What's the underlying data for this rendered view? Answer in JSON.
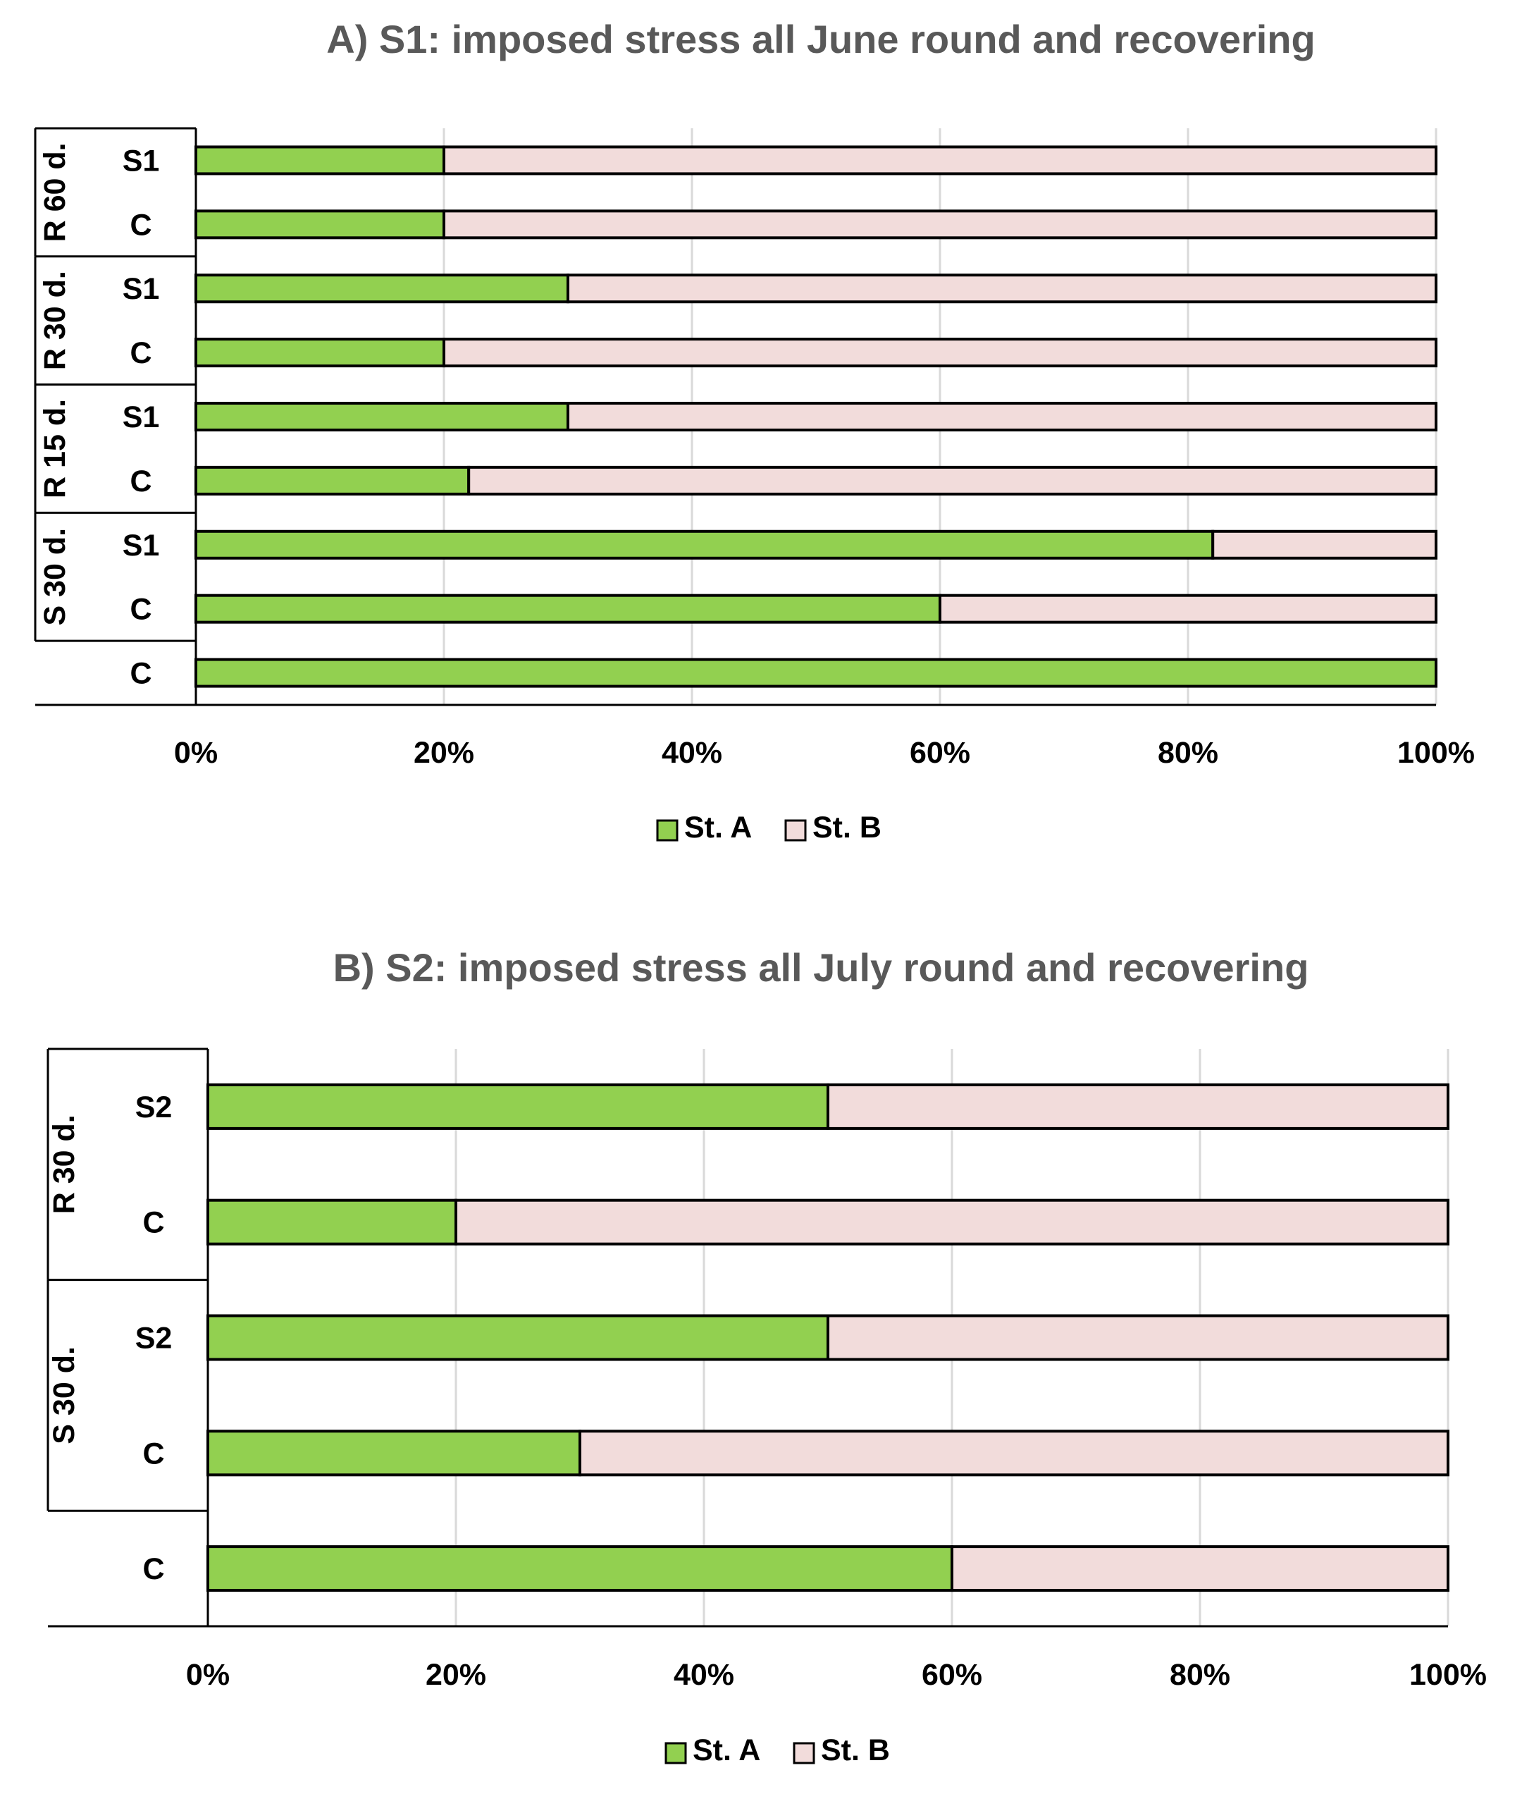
{
  "colors": {
    "st_a": "#92d050",
    "st_b": "#f2dcdb",
    "grid": "#d9d9d9",
    "axis": "#000000",
    "title": "#595959"
  },
  "chart_data": [
    {
      "type": "bar",
      "orientation": "horizontal",
      "stacked": true,
      "percent": true,
      "title": "A)  S1: imposed stress all June round and recovering",
      "xlim": [
        0,
        100
      ],
      "xticks": [
        "0%",
        "20%",
        "40%",
        "60%",
        "80%",
        "100%"
      ],
      "legend_position": "bottom",
      "groups": [
        {
          "label": "R 60 d.",
          "rows": [
            0,
            1
          ]
        },
        {
          "label": "R 30 d.",
          "rows": [
            2,
            3
          ]
        },
        {
          "label": "R 15 d.",
          "rows": [
            4,
            5
          ]
        },
        {
          "label": "S 30 d.",
          "rows": [
            6,
            7
          ]
        },
        {
          "label": "",
          "rows": [
            8
          ]
        }
      ],
      "categories": [
        "S1",
        "C",
        "S1",
        "C",
        "S1",
        "C",
        "S1",
        "C",
        "C"
      ],
      "series": [
        {
          "name": "St. A",
          "values": [
            20,
            20,
            30,
            20,
            30,
            22,
            82,
            60,
            100
          ]
        },
        {
          "name": "St. B",
          "values": [
            80,
            80,
            70,
            80,
            70,
            78,
            18,
            40,
            0
          ]
        }
      ]
    },
    {
      "type": "bar",
      "orientation": "horizontal",
      "stacked": true,
      "percent": true,
      "title": "B)  S2: imposed stress all July round and recovering",
      "xlim": [
        0,
        100
      ],
      "xticks": [
        "0%",
        "20%",
        "40%",
        "60%",
        "80%",
        "100%"
      ],
      "legend_position": "bottom",
      "groups": [
        {
          "label": "R 30 d.",
          "rows": [
            0,
            1
          ]
        },
        {
          "label": "S 30 d.",
          "rows": [
            2,
            3
          ]
        },
        {
          "label": "",
          "rows": [
            4
          ]
        }
      ],
      "categories": [
        "S2",
        "C",
        "S2",
        "C",
        "C"
      ],
      "series": [
        {
          "name": "St. A",
          "values": [
            50,
            20,
            50,
            30,
            60
          ]
        },
        {
          "name": "St. B",
          "values": [
            50,
            80,
            50,
            70,
            40
          ]
        }
      ]
    }
  ]
}
